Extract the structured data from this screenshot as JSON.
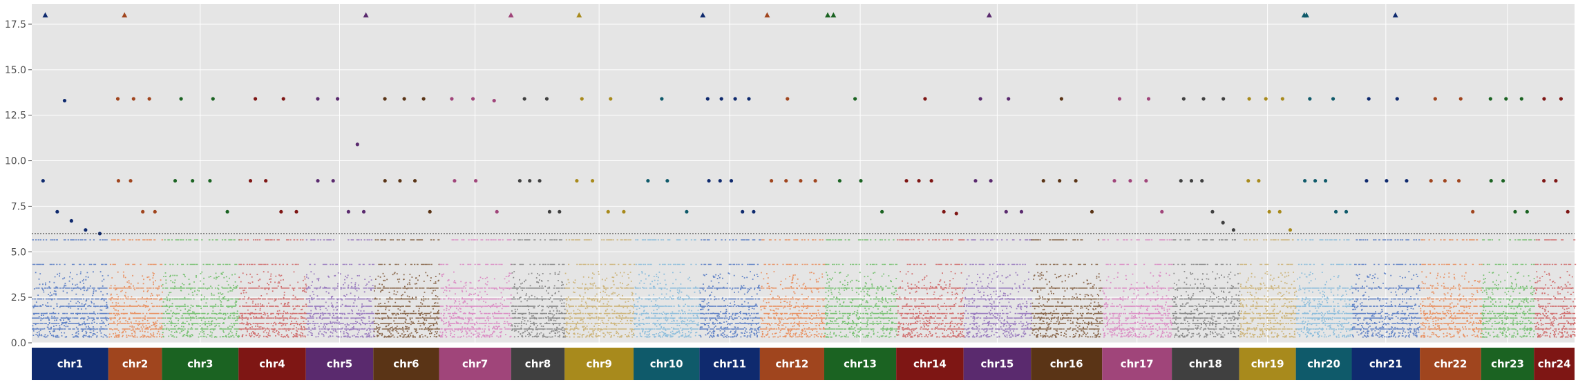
{
  "chart_data": {
    "type": "scatter",
    "title": "",
    "xlabel": "",
    "ylabel": "",
    "ylim": [
      0,
      18.6
    ],
    "yticks": [
      0.0,
      2.5,
      5.0,
      7.5,
      10.0,
      12.5,
      15.0,
      17.5
    ],
    "ytick_labels": [
      "0.0",
      "2.5",
      "5.0",
      "7.5",
      "10.0",
      "12.5",
      "15.0",
      "17.5"
    ],
    "grid": true,
    "threshold": 6.0,
    "capped_value": 18.0,
    "background": "#e5e5e5",
    "chromosomes": [
      {
        "label": "chr1",
        "bar_color": "#0f2a6e",
        "point_color": "#4a72c1",
        "span": 1.0,
        "sig_color": "#0f2a6e",
        "capped": [
          0.14
        ],
        "high": [
          13.3
        ],
        "mid": [
          8.9,
          7.2,
          6.7,
          6.2,
          6.0
        ]
      },
      {
        "label": "chr2",
        "bar_color": "#a0451e",
        "point_color": "#e9854f",
        "span": 0.7,
        "sig_color": "#a0451e",
        "capped": [
          0.25
        ],
        "high": [
          13.4,
          13.4,
          13.4
        ],
        "mid": [
          8.9,
          8.9,
          7.2,
          7.2
        ]
      },
      {
        "label": "chr3",
        "bar_color": "#1b6322",
        "point_color": "#66bb5f",
        "span": 1.0,
        "sig_color": "#1b6322",
        "capped": [],
        "high": [
          13.4,
          13.4
        ],
        "mid": [
          8.9,
          8.9,
          8.9,
          7.2
        ]
      },
      {
        "label": "chr4",
        "bar_color": "#7e1614",
        "point_color": "#cc5c5c",
        "span": 0.88,
        "sig_color": "#7e1614",
        "capped": [],
        "high": [
          13.4,
          13.4
        ],
        "mid": [
          8.9,
          8.9,
          7.2,
          7.2
        ]
      },
      {
        "label": "chr5",
        "bar_color": "#5a2a6e",
        "point_color": "#8e6bb8",
        "span": 0.88,
        "sig_color": "#5a2a6e",
        "capped": [
          0.85
        ],
        "high": [
          13.4,
          13.4,
          10.9
        ],
        "mid": [
          8.9,
          8.9,
          7.2,
          7.2
        ]
      },
      {
        "label": "chr6",
        "bar_color": "#5a3416",
        "point_color": "#7a5232",
        "span": 0.86,
        "sig_color": "#5a3416",
        "capped": [],
        "high": [
          13.4,
          13.4,
          13.4
        ],
        "mid": [
          8.9,
          8.9,
          8.9,
          7.2
        ]
      },
      {
        "label": "chr7",
        "bar_color": "#a0457a",
        "point_color": "#d97fc0",
        "span": 0.94,
        "sig_color": "#a0457a",
        "capped": [
          0.96
        ],
        "high": [
          13.4,
          13.4,
          13.3
        ],
        "mid": [
          8.9,
          8.9,
          7.2
        ]
      },
      {
        "label": "chr8",
        "bar_color": "#404040",
        "point_color": "#7a7a7a",
        "span": 0.7,
        "sig_color": "#404040",
        "capped": [],
        "high": [
          13.4,
          13.4
        ],
        "mid": [
          8.9,
          8.9,
          8.9,
          7.2,
          7.2
        ]
      },
      {
        "label": "chr9",
        "bar_color": "#a88a1c",
        "point_color": "#c9ad6a",
        "span": 0.9,
        "sig_color": "#a88a1c",
        "capped": [
          0.17
        ],
        "high": [
          13.4,
          13.4
        ],
        "mid": [
          8.9,
          8.9,
          7.2,
          7.2
        ]
      },
      {
        "label": "chr10",
        "bar_color": "#0f5a6a",
        "point_color": "#7fb7db",
        "span": 0.86,
        "sig_color": "#0f5a6a",
        "capped": [],
        "high": [
          13.4
        ],
        "mid": [
          8.9,
          8.9,
          7.2
        ]
      },
      {
        "label": "chr11",
        "bar_color": "#0f2a6e",
        "point_color": "#4a72c1",
        "span": 0.79,
        "sig_color": "#0f2a6e",
        "capped": [
          0.01
        ],
        "high": [
          13.4,
          13.4,
          13.4,
          13.4
        ],
        "mid": [
          8.9,
          8.9,
          8.9,
          7.2,
          7.2
        ]
      },
      {
        "label": "chr12",
        "bar_color": "#a0451e",
        "point_color": "#e9854f",
        "span": 0.84,
        "sig_color": "#a0451e",
        "capped": [
          0.07
        ],
        "high": [
          13.4
        ],
        "mid": [
          8.9,
          8.9,
          8.9,
          8.9
        ]
      },
      {
        "label": "chr13",
        "bar_color": "#1b6322",
        "point_color": "#66bb5f",
        "span": 0.94,
        "sig_color": "#1b6322",
        "capped": [
          0.01,
          0.09
        ],
        "high": [
          13.4
        ],
        "mid": [
          8.9,
          8.9,
          7.2
        ]
      },
      {
        "label": "chr14",
        "bar_color": "#7e1614",
        "point_color": "#cc5c5c",
        "span": 0.88,
        "sig_color": "#7e1614",
        "capped": [],
        "high": [
          13.4
        ],
        "mid": [
          8.9,
          8.9,
          8.9,
          7.2,
          7.1
        ]
      },
      {
        "label": "chr15",
        "bar_color": "#5a2a6e",
        "point_color": "#8e6bb8",
        "span": 0.88,
        "sig_color": "#5a2a6e",
        "capped": [
          0.34
        ],
        "high": [
          13.4,
          13.4
        ],
        "mid": [
          8.9,
          8.9,
          7.2,
          7.2
        ]
      },
      {
        "label": "chr16",
        "bar_color": "#5a3416",
        "point_color": "#7a5232",
        "span": 0.93,
        "sig_color": "#5a3416",
        "capped": [],
        "high": [
          13.4
        ],
        "mid": [
          8.9,
          8.9,
          8.9,
          7.2
        ]
      },
      {
        "label": "chr17",
        "bar_color": "#a0457a",
        "point_color": "#d97fc0",
        "span": 0.91,
        "sig_color": "#a0457a",
        "capped": [],
        "high": [
          13.4,
          13.4
        ],
        "mid": [
          8.9,
          8.9,
          8.9,
          7.2
        ]
      },
      {
        "label": "chr18",
        "bar_color": "#404040",
        "point_color": "#7a7a7a",
        "span": 0.88,
        "sig_color": "#404040",
        "capped": [],
        "high": [
          13.4,
          13.4,
          13.4
        ],
        "mid": [
          8.9,
          8.9,
          8.9,
          7.2,
          6.6,
          6.2
        ]
      },
      {
        "label": "chr19",
        "bar_color": "#a88a1c",
        "point_color": "#c9ad6a",
        "span": 0.74,
        "sig_color": "#a88a1c",
        "capped": [],
        "high": [
          13.4,
          13.4,
          13.4
        ],
        "mid": [
          8.9,
          8.9,
          7.2,
          7.2,
          6.2
        ]
      },
      {
        "label": "chr20",
        "bar_color": "#0f5a6a",
        "point_color": "#7fb7db",
        "span": 0.73,
        "sig_color": "#0f5a6a",
        "capped": [
          0.1,
          0.14
        ],
        "high": [
          13.4,
          13.4
        ],
        "mid": [
          8.9,
          8.9,
          8.9,
          7.2,
          7.2
        ]
      },
      {
        "label": "chr21",
        "bar_color": "#0f2a6e",
        "point_color": "#4a72c1",
        "span": 0.89,
        "sig_color": "#0f2a6e",
        "capped": [
          0.6
        ],
        "high": [
          13.4,
          13.4
        ],
        "mid": [
          8.9,
          8.9,
          8.9
        ]
      },
      {
        "label": "chr22",
        "bar_color": "#a0451e",
        "point_color": "#e9854f",
        "span": 0.8,
        "sig_color": "#a0451e",
        "capped": [],
        "high": [
          13.4,
          13.4
        ],
        "mid": [
          8.9,
          8.9,
          8.9,
          7.2
        ]
      },
      {
        "label": "chr23",
        "bar_color": "#1b6322",
        "point_color": "#66bb5f",
        "span": 0.69,
        "sig_color": "#1b6322",
        "capped": [],
        "high": [
          13.4,
          13.4,
          13.4
        ],
        "mid": [
          8.9,
          8.9,
          7.2,
          7.2
        ]
      },
      {
        "label": "chr24",
        "bar_color": "#7e1614",
        "point_color": "#cc5c5c",
        "span": 0.53,
        "sig_color": "#7e1614",
        "capped": [],
        "high": [
          13.4,
          13.4
        ],
        "mid": [
          8.9,
          8.9,
          7.2
        ]
      }
    ]
  }
}
